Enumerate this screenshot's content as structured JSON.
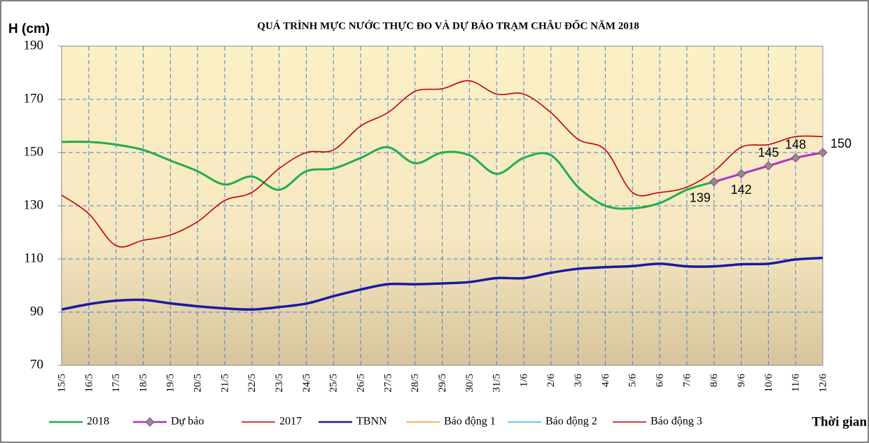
{
  "chart_data": {
    "type": "line",
    "title": "QUÁ TRÌNH MỰC NƯỚC THỰC ĐO VÀ DỰ BÁO TRẠM CHÂU ĐỐC NĂM 2018",
    "y_label": "H (cm)",
    "x_label": "Thời gian",
    "categories": [
      "15/5",
      "16/5",
      "17/5",
      "18/5",
      "19/5",
      "20/5",
      "21/5",
      "22/5",
      "23/5",
      "24/5",
      "25/5",
      "26/5",
      "27/5",
      "28/5",
      "29/5",
      "30/5",
      "31/5",
      "1/6",
      "2/6",
      "3/6",
      "4/6",
      "5/6",
      "6/6",
      "7/6",
      "8/6",
      "9/6",
      "10/6",
      "11/6",
      "12/6"
    ],
    "series": [
      {
        "name": "2018",
        "color": "#1fae4b",
        "width": 3,
        "values": [
          154,
          154,
          153,
          151,
          147,
          143,
          138,
          141,
          136,
          143,
          144,
          148,
          152,
          146,
          150,
          149,
          142,
          148,
          149,
          137,
          130,
          129,
          131,
          136,
          139,
          null,
          null,
          null,
          null
        ]
      },
      {
        "name": "Dự báo",
        "color": "#b030c8",
        "width": 3,
        "marker": "diamond",
        "marker_color": "#7e9c6c",
        "values": [
          null,
          null,
          null,
          null,
          null,
          null,
          null,
          null,
          null,
          null,
          null,
          null,
          null,
          null,
          null,
          null,
          null,
          null,
          null,
          null,
          null,
          null,
          null,
          null,
          139,
          142,
          145,
          148,
          150
        ]
      },
      {
        "name": "2017",
        "color": "#c00000",
        "width": 1.6,
        "values": [
          134,
          127,
          115,
          117,
          119,
          124,
          132,
          135,
          144,
          150,
          151,
          160,
          165,
          173,
          174,
          177,
          172,
          172,
          165,
          155,
          151,
          135,
          135,
          137,
          143,
          152,
          153,
          156,
          156
        ]
      },
      {
        "name": "TBNN",
        "color": "#1a1aa0",
        "width": 3.5,
        "values": [
          91,
          93,
          94.3,
          94.6,
          93.3,
          92.2,
          91.4,
          91,
          91.9,
          93.2,
          96,
          98.5,
          100.5,
          100.5,
          100.8,
          101.3,
          102.8,
          102.8,
          104.8,
          106.3,
          106.9,
          107.3,
          108.2,
          107.2,
          107.2,
          108,
          108.2,
          109.8,
          110.4
        ]
      },
      {
        "name": "Báo động 1",
        "color": "#f0a030",
        "width": 1.6
      },
      {
        "name": "Báo động 2",
        "color": "#33b5e5",
        "width": 1.6
      },
      {
        "name": "Báo động 3",
        "color": "#c00000",
        "width": 1.6
      }
    ],
    "ylim": [
      70,
      190
    ],
    "yticks": [
      70,
      90,
      110,
      130,
      150,
      170,
      190
    ],
    "grid": true,
    "grid_color": "#4a7fd6",
    "legend": "bottom"
  }
}
